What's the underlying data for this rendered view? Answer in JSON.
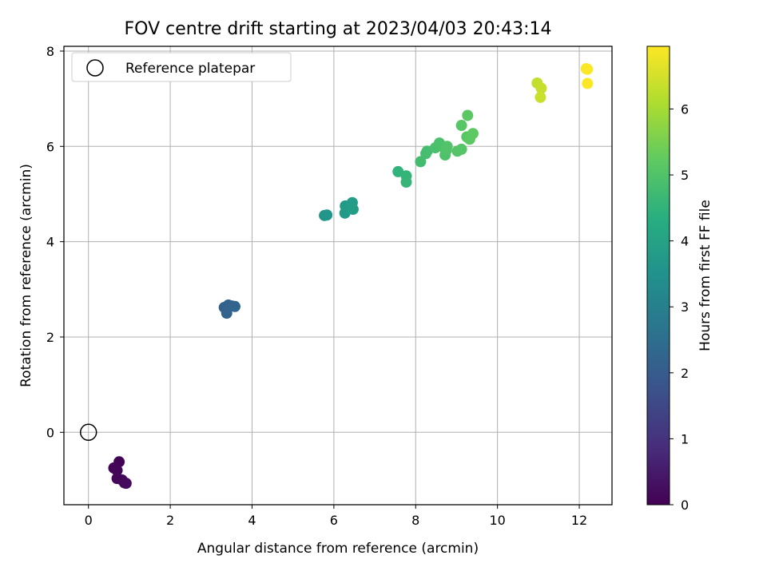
{
  "chart_data": {
    "type": "scatter",
    "title": "FOV centre drift starting at 2023/04/03 20:43:14",
    "xlabel": "Angular distance from reference (arcmin)",
    "ylabel": "Rotation from reference (arcmin)",
    "xlim": [
      -0.6,
      12.8
    ],
    "ylim": [
      -1.52,
      8.1
    ],
    "xticks": [
      0,
      2,
      4,
      6,
      8,
      10,
      12
    ],
    "yticks": [
      0,
      2,
      4,
      6,
      8
    ],
    "grid": true,
    "legend": {
      "position": "top-left",
      "entries": [
        "Reference platepar"
      ]
    },
    "reference_point": {
      "x": 0,
      "y": 0
    },
    "colorbar": {
      "label": "Hours from first FF file",
      "range": [
        0,
        6.95
      ],
      "ticks": [
        0,
        1,
        2,
        3,
        4,
        5,
        6
      ],
      "colormap": "viridis"
    },
    "points": [
      {
        "x": 0.75,
        "y": -0.62,
        "c": 0.05
      },
      {
        "x": 0.62,
        "y": -0.75,
        "c": 0.08
      },
      {
        "x": 0.7,
        "y": -0.8,
        "c": 0.1
      },
      {
        "x": 0.7,
        "y": -0.97,
        "c": 0.12
      },
      {
        "x": 0.82,
        "y": -1.0,
        "c": 0.14
      },
      {
        "x": 0.88,
        "y": -1.06,
        "c": 0.16
      },
      {
        "x": 0.92,
        "y": -1.07,
        "c": 0.18
      },
      {
        "x": 3.32,
        "y": 2.62,
        "c": 2.15
      },
      {
        "x": 3.42,
        "y": 2.67,
        "c": 2.18
      },
      {
        "x": 3.38,
        "y": 2.5,
        "c": 2.2
      },
      {
        "x": 3.5,
        "y": 2.65,
        "c": 2.22
      },
      {
        "x": 3.58,
        "y": 2.64,
        "c": 2.25
      },
      {
        "x": 5.77,
        "y": 4.55,
        "c": 3.6
      },
      {
        "x": 5.83,
        "y": 4.56,
        "c": 3.62
      },
      {
        "x": 6.27,
        "y": 4.6,
        "c": 3.72
      },
      {
        "x": 6.28,
        "y": 4.75,
        "c": 3.75
      },
      {
        "x": 6.38,
        "y": 4.72,
        "c": 3.78
      },
      {
        "x": 6.45,
        "y": 4.82,
        "c": 3.8
      },
      {
        "x": 6.47,
        "y": 4.68,
        "c": 3.82
      },
      {
        "x": 7.57,
        "y": 5.47,
        "c": 4.5
      },
      {
        "x": 7.77,
        "y": 5.38,
        "c": 4.55
      },
      {
        "x": 7.77,
        "y": 5.25,
        "c": 4.58
      },
      {
        "x": 8.12,
        "y": 5.68,
        "c": 4.8
      },
      {
        "x": 8.25,
        "y": 5.85,
        "c": 4.82
      },
      {
        "x": 8.28,
        "y": 5.9,
        "c": 4.85
      },
      {
        "x": 8.48,
        "y": 5.97,
        "c": 4.9
      },
      {
        "x": 8.58,
        "y": 6.07,
        "c": 4.92
      },
      {
        "x": 8.68,
        "y": 5.98,
        "c": 4.95
      },
      {
        "x": 8.72,
        "y": 5.82,
        "c": 4.97
      },
      {
        "x": 8.75,
        "y": 5.92,
        "c": 5.0
      },
      {
        "x": 8.77,
        "y": 6.0,
        "c": 5.02
      },
      {
        "x": 9.02,
        "y": 5.9,
        "c": 5.05
      },
      {
        "x": 9.12,
        "y": 5.94,
        "c": 5.08
      },
      {
        "x": 9.12,
        "y": 6.44,
        "c": 5.1
      },
      {
        "x": 9.25,
        "y": 6.2,
        "c": 5.12
      },
      {
        "x": 9.27,
        "y": 6.65,
        "c": 5.15
      },
      {
        "x": 9.32,
        "y": 6.15,
        "c": 5.18
      },
      {
        "x": 9.4,
        "y": 6.27,
        "c": 5.2
      },
      {
        "x": 10.97,
        "y": 7.33,
        "c": 6.3
      },
      {
        "x": 11.07,
        "y": 7.22,
        "c": 6.35
      },
      {
        "x": 11.05,
        "y": 7.03,
        "c": 6.38
      },
      {
        "x": 12.17,
        "y": 7.63,
        "c": 6.9
      },
      {
        "x": 12.2,
        "y": 7.62,
        "c": 6.92
      },
      {
        "x": 12.2,
        "y": 7.32,
        "c": 6.94
      }
    ]
  }
}
